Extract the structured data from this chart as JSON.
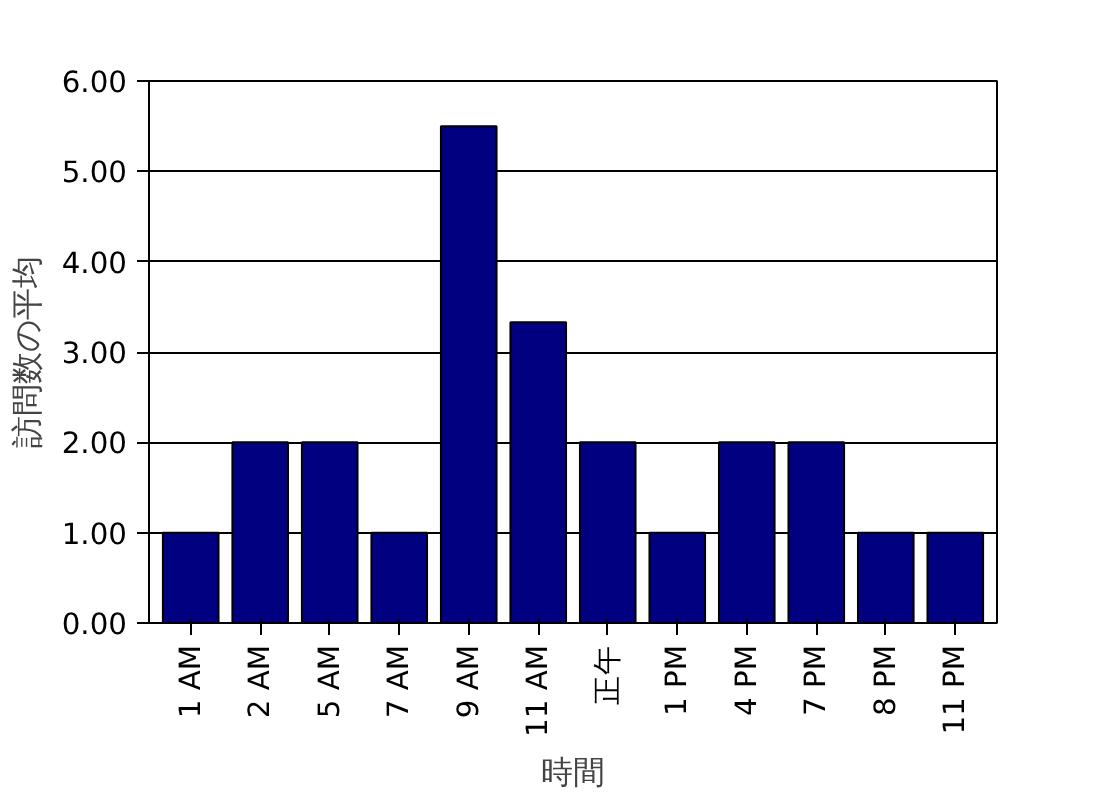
{
  "chart_data": {
    "type": "bar",
    "xlabel": "時間",
    "ylabel": "訪問数の平均",
    "categories": [
      "1 AM",
      "2 AM",
      "5 AM",
      "7 AM",
      "9 AM",
      "11 AM",
      "正午",
      "1 PM",
      "4 PM",
      "7 PM",
      "8 PM",
      "11 PM"
    ],
    "values": [
      1,
      2,
      2,
      1,
      5.5,
      3.33,
      2,
      1,
      2,
      2,
      1,
      1
    ],
    "color": "#000080",
    "ylim": [
      0,
      6
    ],
    "yticks": [
      {
        "value": 0,
        "label": "0.00"
      },
      {
        "value": 1,
        "label": "1.00"
      },
      {
        "value": 2,
        "label": "2.00"
      },
      {
        "value": 3,
        "label": "3.00"
      },
      {
        "value": 4,
        "label": "4.00"
      },
      {
        "value": 5,
        "label": "5.00"
      },
      {
        "value": 6,
        "label": "6.00"
      }
    ],
    "grid": "y"
  }
}
